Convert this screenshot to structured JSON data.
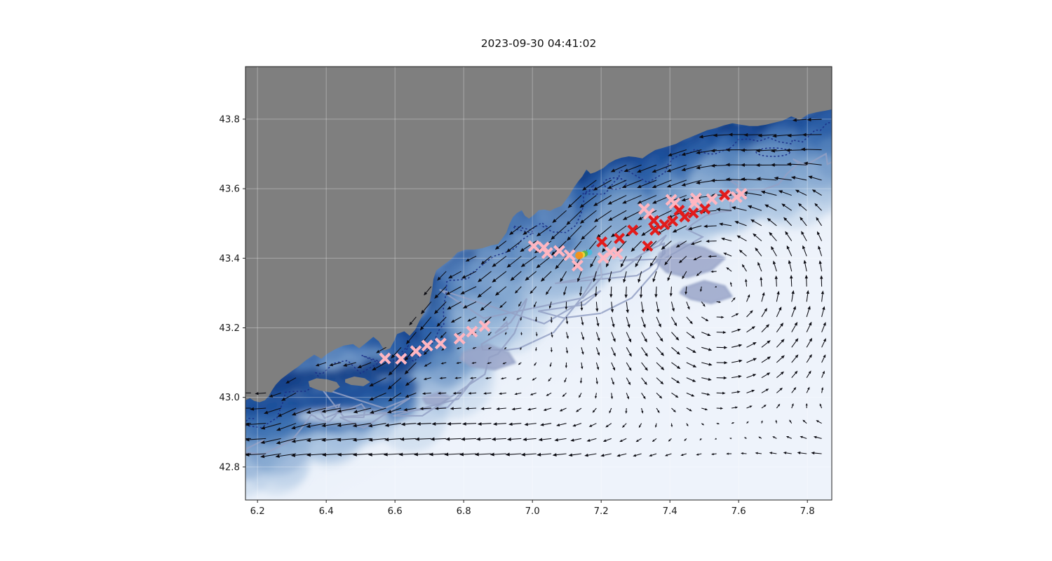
{
  "title": "2023-09-30 04:41:02",
  "chart_data": {
    "type": "map-quiver",
    "title": "2023-09-30 04:41:02",
    "projection": "longitude-latitude degrees",
    "xlim": [
      6.165,
      7.871
    ],
    "ylim": [
      42.705,
      43.951
    ],
    "x_ticks": [
      "6.2",
      "6.4",
      "6.6",
      "6.8",
      "7.0",
      "7.2",
      "7.4",
      "7.6",
      "7.8"
    ],
    "y_ticks": [
      "42.8",
      "43.0",
      "43.2",
      "43.4",
      "43.6",
      "43.8"
    ],
    "grid": true,
    "colors": {
      "land": "#7f7f7f",
      "ocean_pale": "#eef3fb",
      "ocean_light": "#dfe9f5",
      "ocean_mid": "#6490c2",
      "ocean_band1": "#3368ad",
      "ocean_band2": "#1d4f9a",
      "ocean_deep": "#123e86",
      "contour_navy": "#1b2d86",
      "contour_slate": "#93a0c4",
      "patch_lavender": "#9aa6c9",
      "arrow": "#0b0b12",
      "grid_line": "rgba(255,255,255,0.32)"
    },
    "coastline": [
      [
        6.165,
        42.992
      ],
      [
        6.178,
        42.998
      ],
      [
        6.19,
        42.99
      ],
      [
        6.206,
        42.986
      ],
      [
        6.222,
        42.992
      ],
      [
        6.233,
        43.004
      ],
      [
        6.242,
        43.02
      ],
      [
        6.253,
        43.036
      ],
      [
        6.268,
        43.052
      ],
      [
        6.284,
        43.064
      ],
      [
        6.3,
        43.076
      ],
      [
        6.318,
        43.088
      ],
      [
        6.341,
        43.107
      ],
      [
        6.365,
        43.123
      ],
      [
        6.386,
        43.111
      ],
      [
        6.402,
        43.125
      ],
      [
        6.427,
        43.139
      ],
      [
        6.451,
        43.149
      ],
      [
        6.478,
        43.153
      ],
      [
        6.496,
        43.141
      ],
      [
        6.514,
        43.155
      ],
      [
        6.537,
        43.174
      ],
      [
        6.553,
        43.161
      ],
      [
        6.569,
        43.135
      ],
      [
        6.586,
        43.141
      ],
      [
        6.598,
        43.163
      ],
      [
        6.606,
        43.182
      ],
      [
        6.627,
        43.19
      ],
      [
        6.643,
        43.177
      ],
      [
        6.659,
        43.195
      ],
      [
        6.671,
        43.22
      ],
      [
        6.684,
        43.242
      ],
      [
        6.7,
        43.272
      ],
      [
        6.708,
        43.308
      ],
      [
        6.712,
        43.34
      ],
      [
        6.72,
        43.365
      ],
      [
        6.741,
        43.381
      ],
      [
        6.763,
        43.397
      ],
      [
        6.782,
        43.417
      ],
      [
        6.806,
        43.425
      ],
      [
        6.831,
        43.425
      ],
      [
        6.855,
        43.429
      ],
      [
        6.88,
        43.437
      ],
      [
        6.9,
        43.441
      ],
      [
        6.912,
        43.457
      ],
      [
        6.924,
        43.473
      ],
      [
        6.933,
        43.498
      ],
      [
        6.943,
        43.518
      ],
      [
        6.955,
        43.53
      ],
      [
        6.969,
        43.538
      ],
      [
        6.978,
        43.522
      ],
      [
        6.99,
        43.514
      ],
      [
        7.006,
        43.526
      ],
      [
        7.018,
        43.538
      ],
      [
        7.035,
        43.54
      ],
      [
        7.051,
        43.536
      ],
      [
        7.067,
        43.544
      ],
      [
        7.084,
        43.55
      ],
      [
        7.096,
        43.566
      ],
      [
        7.108,
        43.582
      ],
      [
        7.12,
        43.603
      ],
      [
        7.133,
        43.621
      ],
      [
        7.145,
        43.635
      ],
      [
        7.157,
        43.655
      ],
      [
        7.169,
        43.643
      ],
      [
        7.182,
        43.647
      ],
      [
        7.194,
        43.653
      ],
      [
        7.206,
        43.659
      ],
      [
        7.222,
        43.673
      ],
      [
        7.241,
        43.683
      ],
      [
        7.259,
        43.689
      ],
      [
        7.28,
        43.693
      ],
      [
        7.3,
        43.691
      ],
      [
        7.32,
        43.687
      ],
      [
        7.337,
        43.699
      ],
      [
        7.357,
        43.711
      ],
      [
        7.378,
        43.717
      ],
      [
        7.398,
        43.723
      ],
      [
        7.418,
        43.729
      ],
      [
        7.439,
        43.74
      ],
      [
        7.459,
        43.748
      ],
      [
        7.484,
        43.758
      ],
      [
        7.508,
        43.768
      ],
      [
        7.533,
        43.774
      ],
      [
        7.557,
        43.782
      ],
      [
        7.582,
        43.788
      ],
      [
        7.606,
        43.784
      ],
      [
        7.631,
        43.78
      ],
      [
        7.655,
        43.78
      ],
      [
        7.68,
        43.784
      ],
      [
        7.704,
        43.79
      ],
      [
        7.729,
        43.796
      ],
      [
        7.753,
        43.808
      ],
      [
        7.778,
        43.798
      ],
      [
        7.802,
        43.814
      ],
      [
        7.827,
        43.82
      ],
      [
        7.851,
        43.824
      ],
      [
        7.871,
        43.828
      ]
    ],
    "coast_profile": [
      [
        6.165,
        43.06
      ],
      [
        6.24,
        43.02
      ],
      [
        6.34,
        43.1
      ],
      [
        6.46,
        43.13
      ],
      [
        6.57,
        43.16
      ],
      [
        6.65,
        43.22
      ],
      [
        6.7,
        43.33
      ],
      [
        6.74,
        43.39
      ],
      [
        6.83,
        43.425
      ],
      [
        6.9,
        43.44
      ],
      [
        6.95,
        43.53
      ],
      [
        7.05,
        43.54
      ],
      [
        7.12,
        43.6
      ],
      [
        7.22,
        43.675
      ],
      [
        7.32,
        43.69
      ],
      [
        7.42,
        43.725
      ],
      [
        7.55,
        43.78
      ],
      [
        7.66,
        43.78
      ],
      [
        7.75,
        43.81
      ],
      [
        7.87,
        43.835
      ]
    ],
    "islands": [
      [
        [
          6.348,
          43.046
        ],
        [
          6.372,
          43.055
        ],
        [
          6.402,
          43.052
        ],
        [
          6.43,
          43.044
        ],
        [
          6.44,
          43.03
        ],
        [
          6.415,
          43.014
        ],
        [
          6.38,
          43.02
        ],
        [
          6.352,
          43.03
        ]
      ],
      [
        [
          6.455,
          43.052
        ],
        [
          6.482,
          43.06
        ],
        [
          6.512,
          43.055
        ],
        [
          6.528,
          43.044
        ],
        [
          6.508,
          43.032
        ],
        [
          6.472,
          43.036
        ],
        [
          6.455,
          43.043
        ]
      ]
    ],
    "lavender_patches": [
      [
        [
          7.37,
          43.415
        ],
        [
          7.43,
          43.445
        ],
        [
          7.5,
          43.43
        ],
        [
          7.56,
          43.4
        ],
        [
          7.52,
          43.365
        ],
        [
          7.45,
          43.345
        ],
        [
          7.39,
          43.36
        ],
        [
          7.36,
          43.39
        ]
      ],
      [
        [
          7.44,
          43.315
        ],
        [
          7.5,
          43.335
        ],
        [
          7.56,
          43.32
        ],
        [
          7.58,
          43.29
        ],
        [
          7.52,
          43.27
        ],
        [
          7.46,
          43.283
        ],
        [
          7.43,
          43.3
        ]
      ],
      [
        [
          6.8,
          43.13
        ],
        [
          6.87,
          43.152
        ],
        [
          6.93,
          43.13
        ],
        [
          6.95,
          43.1
        ],
        [
          6.89,
          43.08
        ],
        [
          6.82,
          43.09
        ],
        [
          6.79,
          43.11
        ]
      ],
      [
        [
          6.68,
          43.0
        ],
        [
          6.73,
          43.015
        ],
        [
          6.762,
          43.0
        ],
        [
          6.73,
          42.976
        ],
        [
          6.69,
          42.982
        ]
      ]
    ],
    "markers": {
      "pink_x": {
        "color": "#ffb6c1",
        "points": [
          [
            6.571,
            43.112
          ],
          [
            6.618,
            43.111
          ],
          [
            6.661,
            43.133
          ],
          [
            6.694,
            43.149
          ],
          [
            6.733,
            43.155
          ],
          [
            6.788,
            43.169
          ],
          [
            6.824,
            43.189
          ],
          [
            6.861,
            43.205
          ],
          [
            7.004,
            43.435
          ],
          [
            7.033,
            43.431
          ],
          [
            7.043,
            43.415
          ],
          [
            7.078,
            43.421
          ],
          [
            7.108,
            43.409
          ],
          [
            7.131,
            43.379
          ],
          [
            7.206,
            43.401
          ],
          [
            7.227,
            43.417
          ],
          [
            7.247,
            43.413
          ],
          [
            7.325,
            43.542
          ],
          [
            7.339,
            43.528
          ],
          [
            7.404,
            43.568
          ],
          [
            7.414,
            43.558
          ],
          [
            7.476,
            43.572
          ],
          [
            7.471,
            43.558
          ],
          [
            7.522,
            43.57
          ],
          [
            7.563,
            43.578
          ],
          [
            7.594,
            43.576
          ],
          [
            7.608,
            43.585
          ]
        ]
      },
      "red_x": {
        "color": "#e21b1b",
        "points": [
          [
            7.202,
            43.447
          ],
          [
            7.253,
            43.457
          ],
          [
            7.292,
            43.481
          ],
          [
            7.335,
            43.435
          ],
          [
            7.353,
            43.508
          ],
          [
            7.357,
            43.481
          ],
          [
            7.384,
            43.497
          ],
          [
            7.408,
            43.507
          ],
          [
            7.427,
            43.538
          ],
          [
            7.443,
            43.519
          ],
          [
            7.468,
            43.53
          ],
          [
            7.502,
            43.542
          ],
          [
            7.559,
            43.582
          ]
        ]
      },
      "release_trail": {
        "points": [
          {
            "lon": 7.165,
            "lat": 43.417,
            "r": 4.5,
            "color": "#49b8dc"
          },
          {
            "lon": 7.152,
            "lat": 43.413,
            "r": 4.5,
            "color": "#59b445"
          },
          {
            "lon": 7.144,
            "lat": 43.41,
            "r": 4.5,
            "color": "#f2d73a"
          },
          {
            "lon": 7.136,
            "lat": 43.408,
            "r": 5.5,
            "color": "#f59116"
          }
        ]
      }
    },
    "quiver": {
      "color": "#0b0b12",
      "grid_step_deg": 0.0437,
      "lat_min": 42.838,
      "coastal_jet": {
        "direction": "southwest along coast",
        "peak_speed": 1.25,
        "peak_offset_deg": 0.1,
        "width_deg": 0.12
      },
      "eddy": {
        "center": [
          7.54,
          43.31
        ],
        "rotation": "counterclockwise",
        "peak_radius_deg": 0.28,
        "peak_speed": 0.85,
        "extent_deg": 0.55
      },
      "west_drift": {
        "speed": 0.9,
        "south_boost": 0.45,
        "lat_max": 43.18
      }
    }
  }
}
